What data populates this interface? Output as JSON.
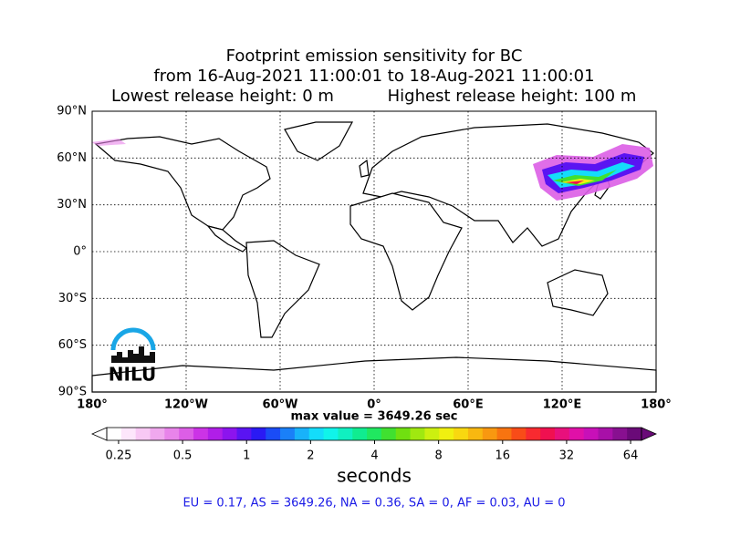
{
  "chart_data": {
    "type": "map",
    "title": [
      "Footprint emission sensitivity for BC",
      "from 16-Aug-2021 11:00:01 to 18-Aug-2021 11:00:01"
    ],
    "subtitle": [
      "Lowest release height: 0 m",
      "Highest release height: 100 m"
    ],
    "xlim": [
      -180,
      180
    ],
    "ylim": [
      -90,
      90
    ],
    "xticks": [
      {
        "value": -180,
        "label": "180°"
      },
      {
        "value": -120,
        "label": "120°W"
      },
      {
        "value": -60,
        "label": "60°W"
      },
      {
        "value": 0,
        "label": "0°"
      },
      {
        "value": 60,
        "label": "60°E"
      },
      {
        "value": 120,
        "label": "120°E"
      },
      {
        "value": 180,
        "label": "180°"
      }
    ],
    "yticks": [
      {
        "value": 90,
        "label": "90°N"
      },
      {
        "value": 60,
        "label": "60°N"
      },
      {
        "value": 30,
        "label": "30°N"
      },
      {
        "value": 0,
        "label": "0°"
      },
      {
        "value": -30,
        "label": "30°S"
      },
      {
        "value": -60,
        "label": "60°S"
      },
      {
        "value": -90,
        "label": "90°S"
      }
    ],
    "grid": true,
    "annotation": "max value = 3649.26 sec",
    "logo": "NILU",
    "colorbar": {
      "label": "seconds",
      "log_scale": true,
      "lim": [
        0.22,
        72
      ],
      "ticks": [
        0.25,
        0.5,
        1,
        2,
        4,
        8,
        16,
        32,
        64
      ],
      "colors": [
        "#ffffff",
        "#fde6fb",
        "#f8c8f4",
        "#f0a8ee",
        "#e884ea",
        "#dc5ee6",
        "#cc33e6",
        "#b01ee8",
        "#8c14ee",
        "#5a14f2",
        "#2a1af4",
        "#1a4cf6",
        "#1a80f8",
        "#18b2fa",
        "#14dcfa",
        "#10f4ea",
        "#10f0c0",
        "#10ec90",
        "#20e860",
        "#40e030",
        "#70e010",
        "#a0e810",
        "#ccf010",
        "#f0f010",
        "#f8d810",
        "#f8b810",
        "#f89810",
        "#f87410",
        "#f84c18",
        "#f82a30",
        "#f01050",
        "#e8107c",
        "#e010a8",
        "#c810b8",
        "#a810a8",
        "#881090",
        "#6a0a78"
      ]
    },
    "footer": "EU = 0.17,  AS = 3649.26,  NA = 0.36,  SA = 0,  AF = 0.03,  AU = 0"
  }
}
